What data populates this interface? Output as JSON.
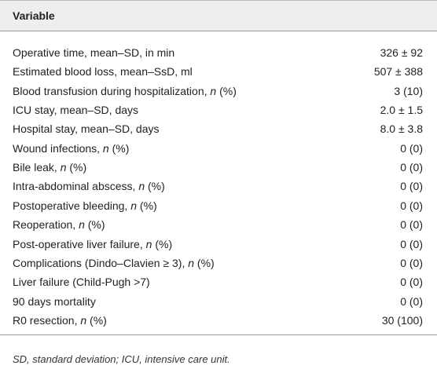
{
  "table": {
    "header": [
      "Variable"
    ],
    "rows": [
      {
        "label": [
          "Operative time, mean–SD, in min"
        ],
        "value": "326 ± 92"
      },
      {
        "label": [
          "Estimated blood loss, mean–SsD, ml"
        ],
        "value": "507 ± 388"
      },
      {
        "label": [
          "Blood transfusion during hospitalization, ",
          "n",
          " (%)"
        ],
        "value": "3 (10)"
      },
      {
        "label": [
          "ICU stay, mean–SD, days"
        ],
        "value": "2.0 ± 1.5"
      },
      {
        "label": [
          "Hospital stay, mean–SD, days"
        ],
        "value": "8.0 ± 3.8"
      },
      {
        "label": [
          "Wound infections, ",
          "n",
          " (%)"
        ],
        "value": "0 (0)"
      },
      {
        "label": [
          "Bile leak, ",
          "n",
          " (%)"
        ],
        "value": "0 (0)"
      },
      {
        "label": [
          "Intra-abdominal abscess, ",
          "n",
          " (%)"
        ],
        "value": "0 (0)"
      },
      {
        "label": [
          "Postoperative bleeding, ",
          "n",
          " (%)"
        ],
        "value": "0 (0)"
      },
      {
        "label": [
          "Reoperation, ",
          "n",
          " (%)"
        ],
        "value": "0 (0)"
      },
      {
        "label": [
          "Post-operative liver failure, ",
          "n",
          " (%)"
        ],
        "value": "0 (0)"
      },
      {
        "label": [
          "Complications (Dindo–Clavien ≥ 3), ",
          "n",
          " (%)"
        ],
        "value": "0 (0)"
      },
      {
        "label": [
          "Liver failure (Child-Pugh >7)"
        ],
        "value": "0 (0)"
      },
      {
        "label": [
          "90 days mortality"
        ],
        "value": "0 (0)"
      },
      {
        "label": [
          "R0 resection, ",
          "n",
          " (%)"
        ],
        "value": "30 (100)"
      }
    ],
    "footnote": "SD, standard deviation; ICU, intensive care unit."
  }
}
